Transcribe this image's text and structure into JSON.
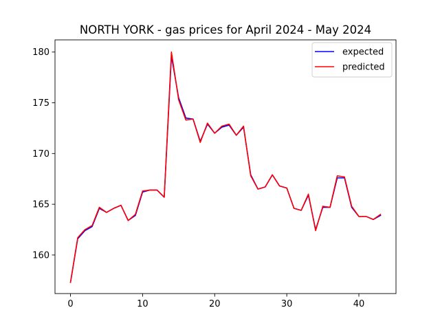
{
  "chart_data": {
    "type": "line",
    "title": "NORTH YORK - gas prices for April 2024 - May 2024",
    "xlabel": "",
    "ylabel": "",
    "xlim": [
      -2.15,
      45.15
    ],
    "ylim": [
      156.2,
      181.2
    ],
    "xticks": [
      0,
      10,
      20,
      30,
      40
    ],
    "yticks": [
      160,
      165,
      170,
      175,
      180
    ],
    "grid": false,
    "legend_position": "top-right",
    "x": [
      0,
      1,
      2,
      3,
      4,
      5,
      6,
      7,
      8,
      9,
      10,
      11,
      12,
      13,
      14,
      15,
      16,
      17,
      18,
      19,
      20,
      21,
      22,
      23,
      24,
      25,
      26,
      27,
      28,
      29,
      30,
      31,
      32,
      33,
      34,
      35,
      36,
      37,
      38,
      39,
      40,
      41,
      42,
      43
    ],
    "series": [
      {
        "name": "expected",
        "color": "#0000ff",
        "values": [
          157.3,
          161.6,
          162.4,
          162.8,
          164.6,
          164.2,
          164.6,
          164.9,
          163.4,
          163.9,
          166.2,
          166.4,
          166.4,
          165.7,
          179.6,
          175.5,
          173.5,
          173.4,
          171.2,
          172.9,
          172.0,
          172.6,
          172.8,
          171.8,
          172.6,
          167.9,
          166.5,
          166.7,
          167.9,
          166.8,
          166.6,
          164.6,
          164.4,
          165.9,
          162.5,
          164.7,
          164.7,
          167.6,
          167.6,
          164.7,
          163.8,
          163.8,
          163.5,
          163.9
        ]
      },
      {
        "name": "predicted",
        "color": "#ff0000",
        "values": [
          157.3,
          161.7,
          162.5,
          162.9,
          164.7,
          164.2,
          164.6,
          164.9,
          163.4,
          164.0,
          166.3,
          166.4,
          166.4,
          165.7,
          180.0,
          175.3,
          173.3,
          173.4,
          171.1,
          173.0,
          172.0,
          172.7,
          172.9,
          171.8,
          172.7,
          167.8,
          166.5,
          166.7,
          167.9,
          166.8,
          166.6,
          164.6,
          164.4,
          166.0,
          162.4,
          164.8,
          164.7,
          167.8,
          167.7,
          164.8,
          163.8,
          163.8,
          163.5,
          164.0
        ]
      }
    ]
  }
}
